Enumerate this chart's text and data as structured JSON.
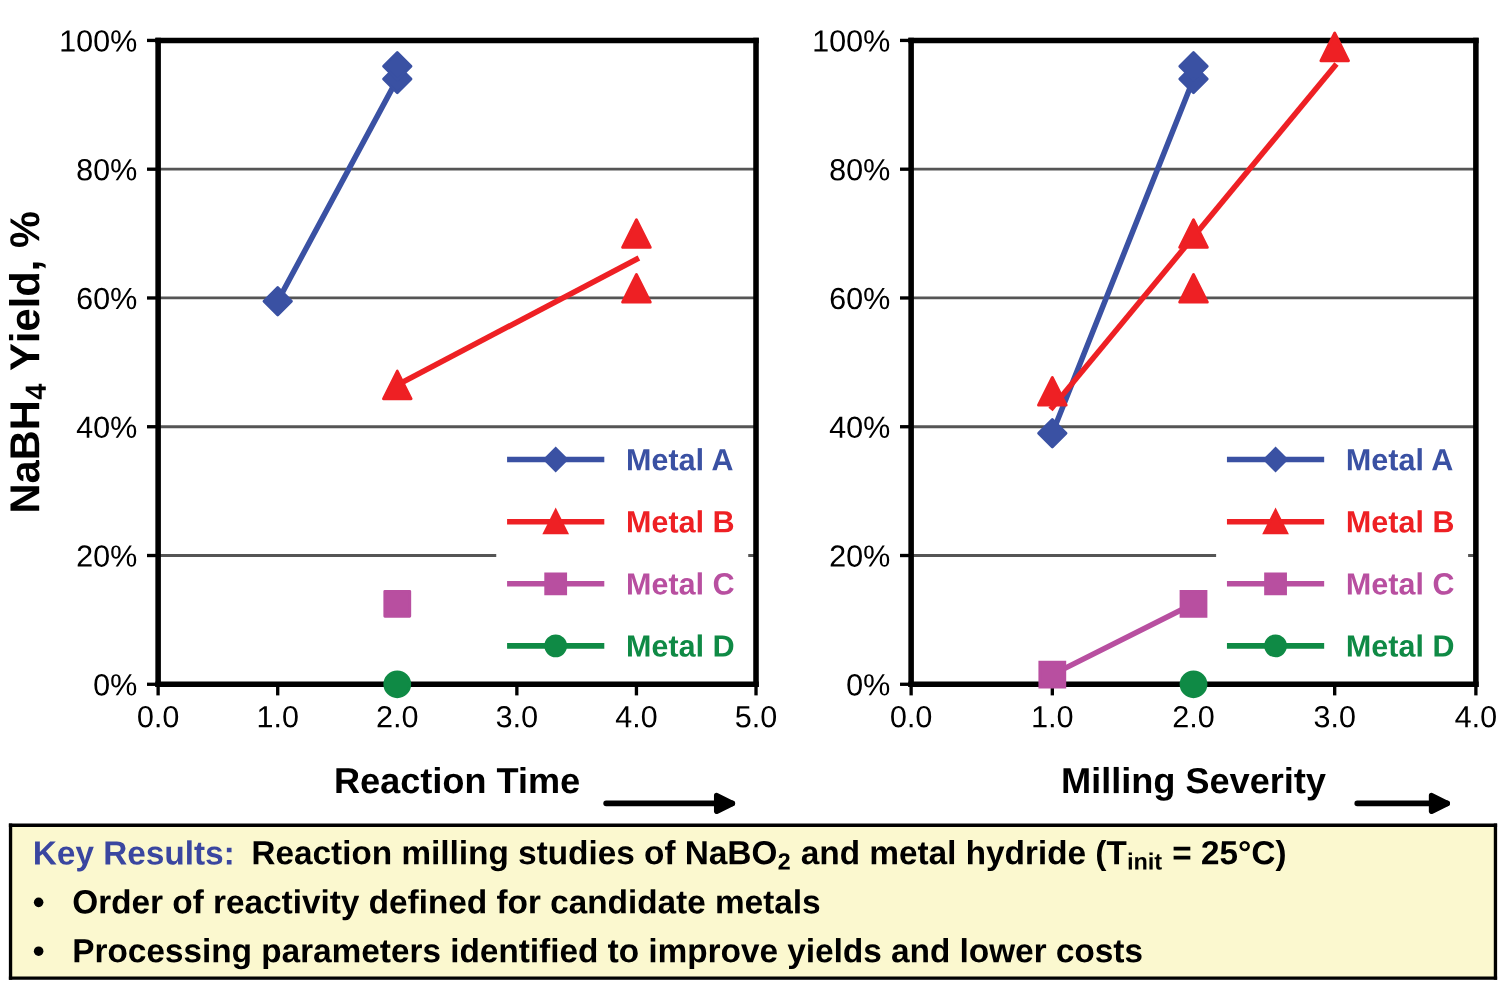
{
  "chart_data": [
    {
      "type": "scatter",
      "xlabel": "Reaction Time",
      "ylabel": "NaBH$_{4}$ Yield, %",
      "xlim": [
        0,
        5
      ],
      "xticks": [
        {
          "value": 0,
          "label": "0.0"
        },
        {
          "value": 1,
          "label": "1.0"
        },
        {
          "value": 2,
          "label": "2.0"
        },
        {
          "value": 3,
          "label": "3.0"
        },
        {
          "value": 4,
          "label": "4.0"
        },
        {
          "value": 5,
          "label": "5.0"
        }
      ],
      "ylim": [
        0,
        100
      ],
      "yticks": [
        {
          "value": 0,
          "label": "0%"
        },
        {
          "value": 20,
          "label": "20%"
        },
        {
          "value": 40,
          "label": "40%"
        },
        {
          "value": 60,
          "label": "60%"
        },
        {
          "value": 80,
          "label": "80%"
        },
        {
          "value": 100,
          "label": "100%"
        }
      ],
      "grid": "y",
      "legend": "bottom right",
      "series": [
        {
          "name": "Metal A",
          "type": "scatter",
          "color": "#3a51a3",
          "marker": "diamond",
          "x": [
            1,
            2,
            2
          ],
          "values": [
            59.5,
            94,
            96
          ]
        },
        {
          "type": "line",
          "color": "#3a51a3",
          "x": [
            1,
            2
          ],
          "values": [
            59.5,
            94
          ]
        },
        {
          "name": "Metal B",
          "type": "scatter",
          "color": "#ee2024",
          "marker": "triangle",
          "x": [
            2,
            4,
            4
          ],
          "values": [
            46.5,
            70,
            61.5
          ]
        },
        {
          "type": "line",
          "color": "#ee2024",
          "x": [
            2,
            4
          ],
          "values": [
            46.5,
            66
          ]
        },
        {
          "name": "Metal C",
          "type": "scatter",
          "color": "#b84fa0",
          "marker": "square",
          "x": [
            2
          ],
          "values": [
            12.5
          ]
        },
        {
          "name": "Metal D",
          "type": "scatter",
          "color": "#0f8a45",
          "marker": "circle",
          "x": [
            2
          ],
          "values": [
            0
          ]
        }
      ]
    },
    {
      "type": "scatter",
      "xlabel": "Milling Severity",
      "xlim": [
        0,
        4
      ],
      "xticks": [
        {
          "value": 0,
          "label": "0.0"
        },
        {
          "value": 1,
          "label": "1.0"
        },
        {
          "value": 2,
          "label": "2.0"
        },
        {
          "value": 3,
          "label": "3.0"
        },
        {
          "value": 4,
          "label": "4.0"
        }
      ],
      "ylim": [
        0,
        100
      ],
      "yticks": [
        {
          "value": 0,
          "label": "0%"
        },
        {
          "value": 20,
          "label": "20%"
        },
        {
          "value": 40,
          "label": "40%"
        },
        {
          "value": 60,
          "label": "60%"
        },
        {
          "value": 80,
          "label": "80%"
        },
        {
          "value": 100,
          "label": "100%"
        }
      ],
      "grid": "y",
      "legend": "bottom right",
      "series": [
        {
          "name": "Metal A",
          "type": "scatter",
          "color": "#3a51a3",
          "marker": "diamond",
          "x": [
            1,
            2,
            2
          ],
          "values": [
            39,
            94,
            96
          ]
        },
        {
          "type": "line",
          "color": "#3a51a3",
          "x": [
            1,
            2
          ],
          "values": [
            39,
            94
          ]
        },
        {
          "name": "Metal B",
          "type": "scatter",
          "color": "#ee2024",
          "marker": "triangle",
          "x": [
            1,
            2,
            2,
            3
          ],
          "values": [
            45.5,
            70,
            61.5,
            99
          ]
        },
        {
          "type": "line",
          "color": "#ee2024",
          "x": [
            1,
            3
          ],
          "values": [
            43,
            96
          ]
        },
        {
          "name": "Metal C",
          "type": "line",
          "color": "#b84fa0",
          "marker": "square",
          "x": [
            1,
            2
          ],
          "values": [
            1.5,
            12.5
          ]
        },
        {
          "name": "Metal D",
          "type": "scatter",
          "color": "#0f8a45",
          "marker": "circle",
          "x": [
            2
          ],
          "values": [
            0
          ]
        }
      ]
    },
    {
      "type": "other",
      "title": "Key Results:",
      "annotations": [
        "Reaction milling studies of NaBO$_{2}$ and metal hydride (T$_{init}$ = 25°C)",
        "•   Order of reactivity defined for candidate metals",
        "•   Processing parameters identified to improve yields and lower costs"
      ]
    }
  ]
}
